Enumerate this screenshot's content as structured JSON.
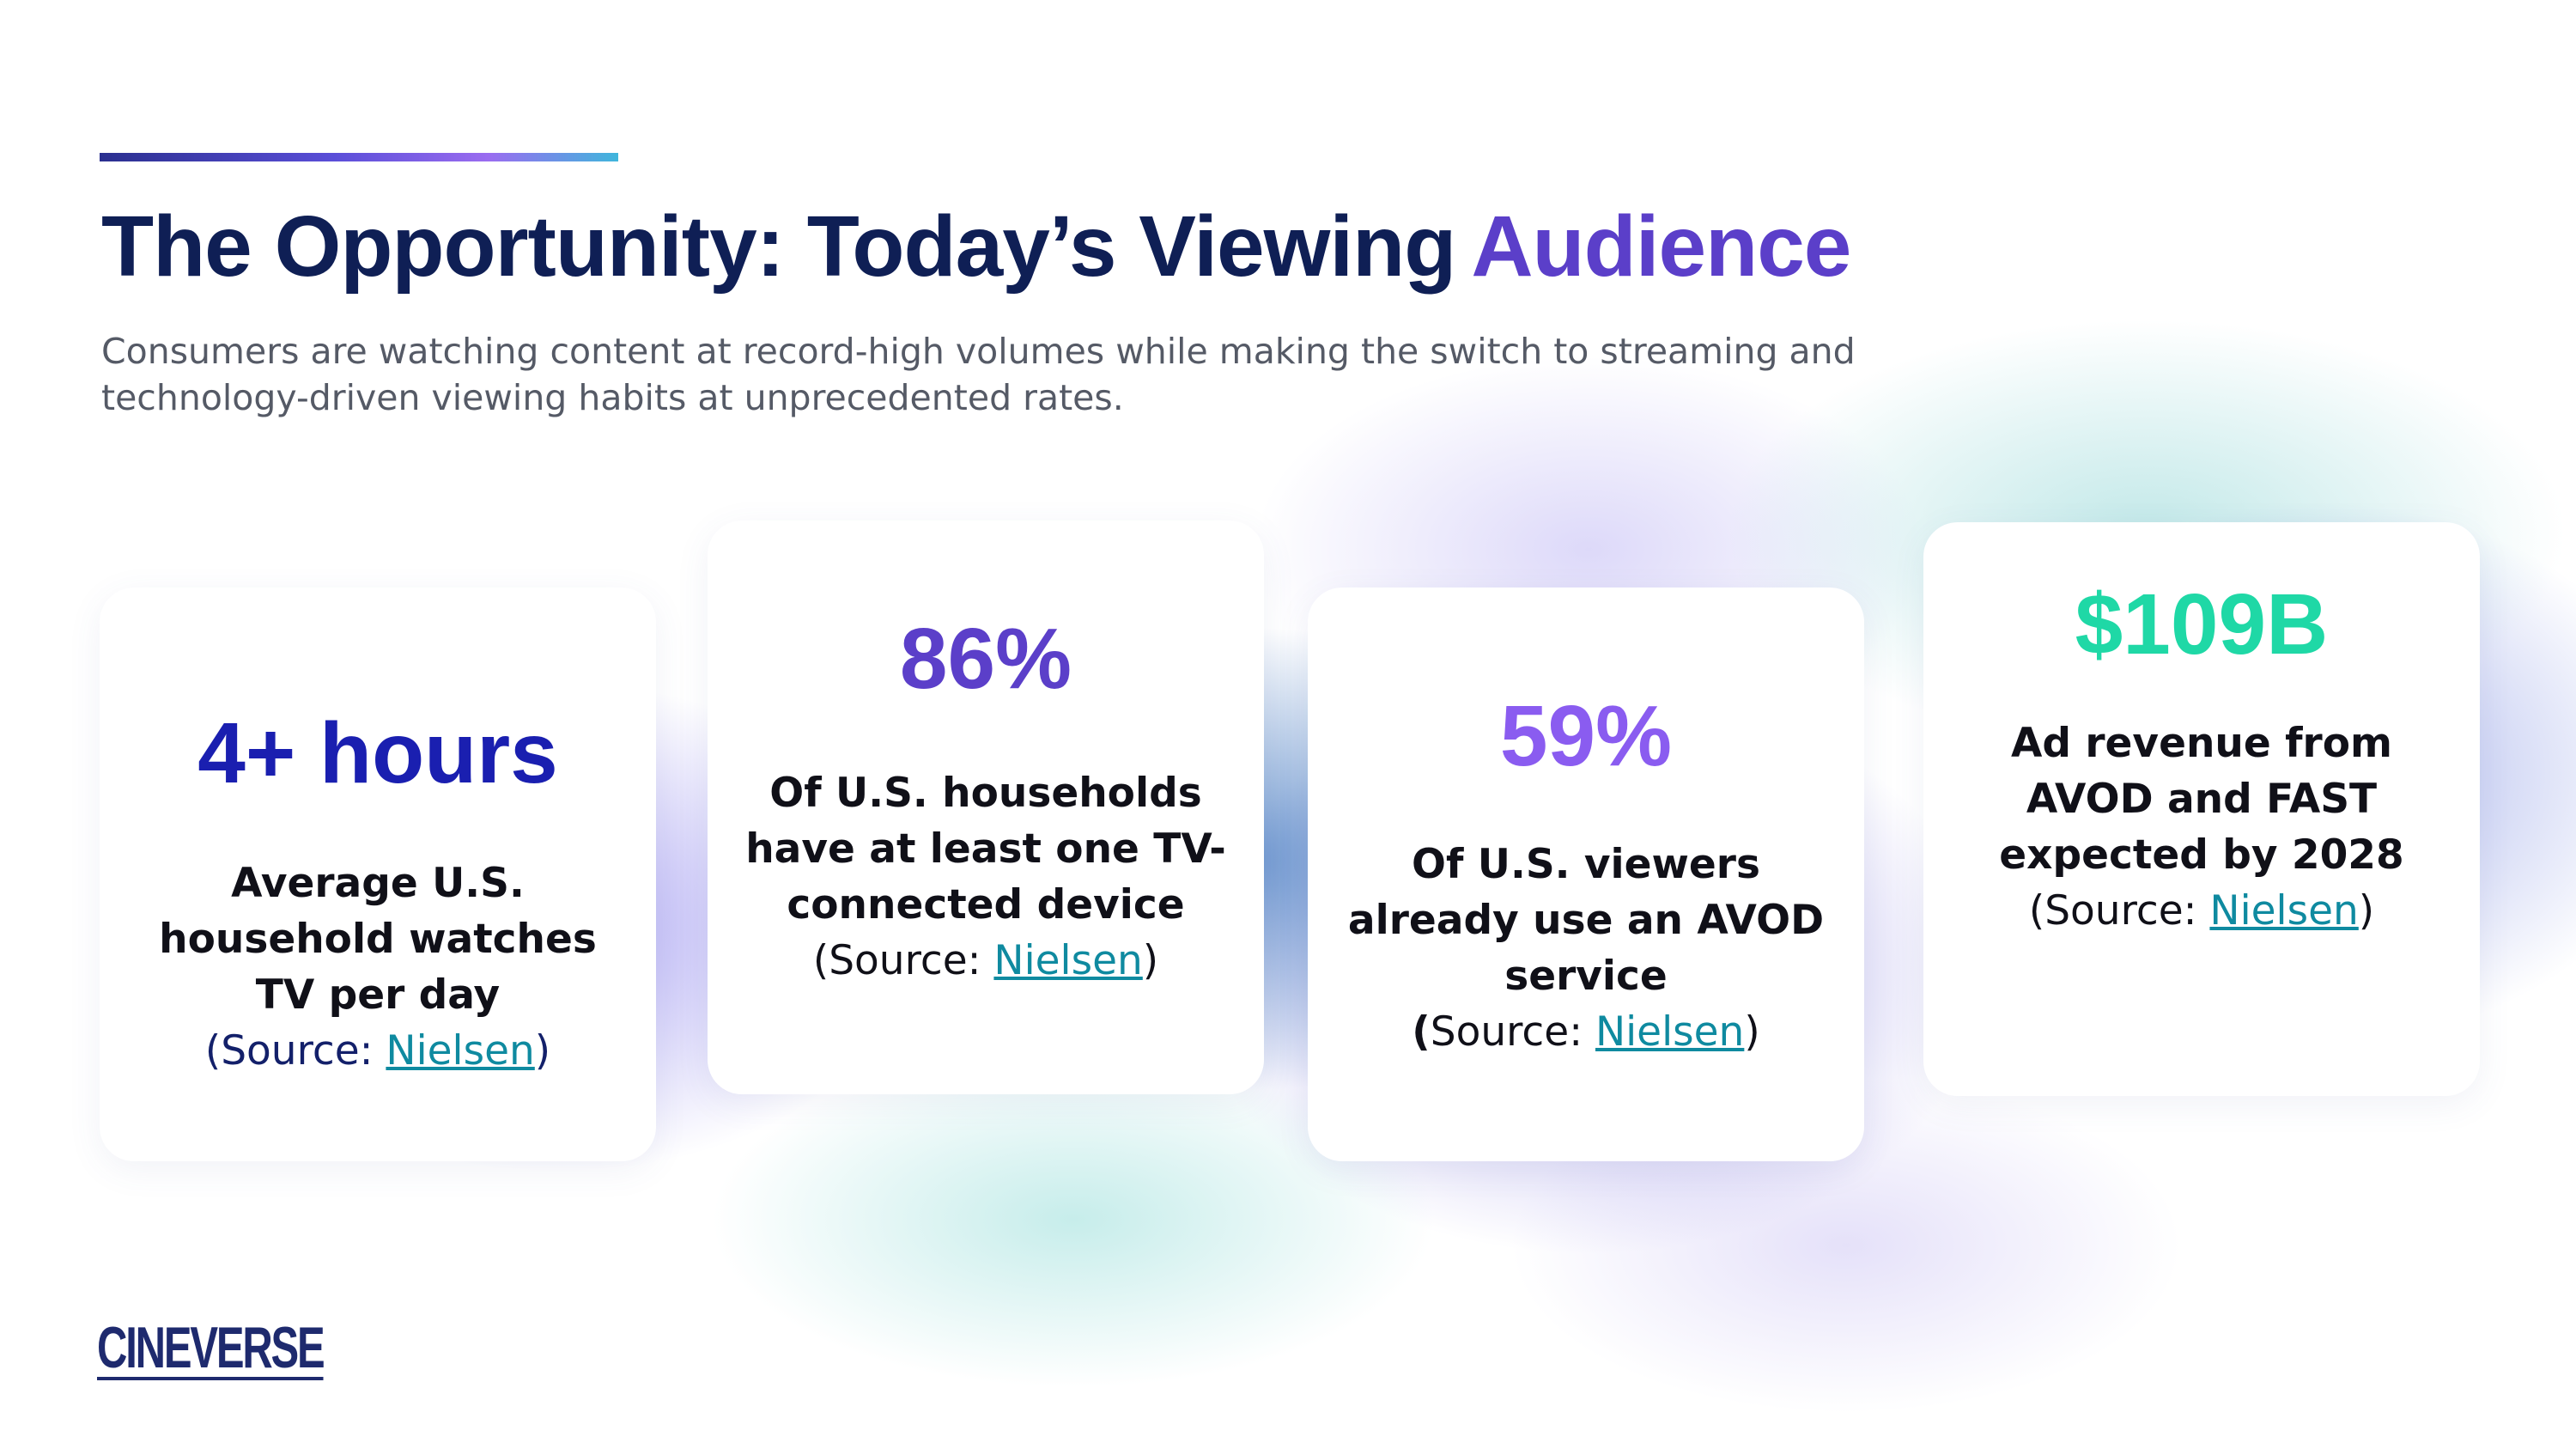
{
  "header": {
    "title_main": "The Opportunity: Today’s Viewing",
    "title_accent": "Audience",
    "subtitle": "Consumers are watching content at record-high volumes while making the switch to streaming and technology-driven viewing habits at unprecedented rates."
  },
  "cards": [
    {
      "stat": "4+ hours",
      "desc": "Average U.S. household watches TV per day",
      "source_prefix": "(Source: ",
      "source_link": "Nielsen",
      "source_suffix": ")",
      "stat_color": "#1a1fb0"
    },
    {
      "stat": "86%",
      "desc": "Of U.S. households have at least one TV-connected device",
      "source_prefix": "(Source: ",
      "source_link": "Nielsen",
      "source_suffix": ")",
      "stat_color": "#5b3fc9"
    },
    {
      "stat": "59%",
      "desc": "Of U.S. viewers already use an AVOD service",
      "source_prefix": "(",
      "source_mid": "Source: ",
      "source_link": "Nielsen",
      "source_suffix": ")",
      "stat_color": "#8a5cf0"
    },
    {
      "stat": "$109B",
      "desc": "Ad revenue from AVOD and FAST expected by 2028",
      "source_prefix": "(Source: ",
      "source_link": "Nielsen",
      "source_suffix": ")",
      "stat_color": "#1fd8a6"
    }
  ],
  "footer": {
    "logo_text": "CINEVERSE"
  }
}
